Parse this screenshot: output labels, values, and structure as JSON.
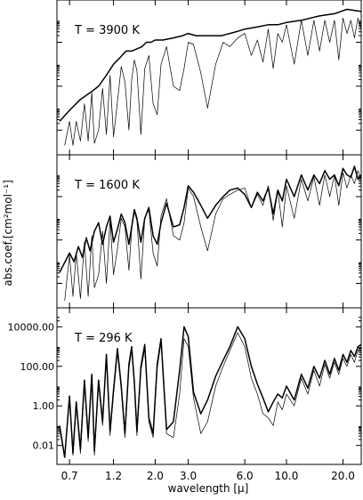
{
  "chart_data": {
    "type": "line",
    "xlabel": "wavelength [μ]",
    "ylabel": "abs.coef.[cm²mol⁻¹]",
    "x_scale": "log",
    "xlim": [
      0.6,
      25
    ],
    "xticks": [
      "0.7",
      "1.2",
      "2.0",
      "3.0",
      "6.0",
      "10.0",
      "20.0"
    ],
    "xtick_values": [
      0.7,
      1.2,
      2.0,
      3.0,
      6.0,
      10.0,
      20.0
    ],
    "panels": [
      {
        "annotation": "T = 3900 K",
        "y_scale": "log",
        "ylim_log10": [
          -2.8,
          3.6
        ],
        "ytick_log10": [
          -2,
          0,
          2
        ],
        "ytick_labels": [],
        "series": [
          {
            "style": "thick",
            "x": [
              0.62,
              0.7,
              0.8,
              0.9,
              1.0,
              1.1,
              1.2,
              1.3,
              1.4,
              1.5,
              1.6,
              1.7,
              1.8,
              1.9,
              2.0,
              2.2,
              2.5,
              2.8,
              3.0,
              3.3,
              3.6,
              4.0,
              4.5,
              5.0,
              5.5,
              6.0,
              7.0,
              8.0,
              9.0,
              10.0,
              12.0,
              15.0,
              18.0,
              21.0,
              25.0
            ],
            "y": [
              -1.6,
              -1.1,
              -0.6,
              -0.3,
              0.0,
              0.5,
              1.0,
              1.3,
              1.6,
              1.6,
              1.7,
              1.8,
              2.0,
              2.0,
              2.1,
              2.1,
              2.2,
              2.3,
              2.4,
              2.3,
              2.3,
              2.3,
              2.3,
              2.4,
              2.5,
              2.6,
              2.7,
              2.8,
              2.8,
              2.9,
              3.0,
              3.2,
              3.3,
              3.5,
              3.4
            ]
          },
          {
            "style": "thin",
            "x": [
              0.66,
              0.7,
              0.73,
              0.76,
              0.8,
              0.84,
              0.88,
              0.92,
              0.95,
              1.0,
              1.05,
              1.1,
              1.15,
              1.2,
              1.26,
              1.32,
              1.38,
              1.45,
              1.5,
              1.55,
              1.6,
              1.68,
              1.76,
              1.85,
              1.95,
              2.05,
              2.15,
              2.3,
              2.5,
              2.7,
              2.85,
              3.0,
              3.2,
              3.5,
              3.8,
              4.2,
              4.6,
              5.0,
              5.5,
              6.0,
              6.5,
              7.0,
              7.5,
              8.0,
              8.5,
              9.0,
              9.5,
              10.0,
              11.0,
              12.0,
              13.0,
              14.0,
              15.0,
              16.0,
              17.0,
              18.0,
              19.0,
              20.0,
              21.0,
              22.0,
              23.0,
              24.0,
              25.0
            ],
            "y": [
              -2.7,
              -1.6,
              -2.7,
              -1.6,
              -2.5,
              -0.8,
              -2.5,
              -0.3,
              -2.6,
              -2.0,
              -0.1,
              -2.2,
              0.5,
              -2.3,
              -0.7,
              0.9,
              0.2,
              -2.0,
              0.3,
              1.2,
              0.7,
              -2.2,
              0.8,
              1.4,
              -0.8,
              -1.3,
              1.0,
              1.8,
              0.0,
              -0.2,
              0.8,
              2.0,
              1.9,
              0.6,
              -1.0,
              1.0,
              2.0,
              1.8,
              2.2,
              2.4,
              1.4,
              2.1,
              1.1,
              2.6,
              0.8,
              2.4,
              2.0,
              2.8,
              1.0,
              3.0,
              1.4,
              3.0,
              1.6,
              3.0,
              2.0,
              3.0,
              1.2,
              3.1,
              2.4,
              3.0,
              2.2,
              3.1,
              2.6
            ]
          }
        ]
      },
      {
        "annotation": "T = 1600 K",
        "y_scale": "log",
        "ylim_log10": [
          -2.8,
          3.6
        ],
        "ytick_log10": [
          -2,
          0,
          2
        ],
        "ytick_labels": [],
        "series": [
          {
            "style": "thick",
            "x": [
              0.62,
              0.7,
              0.74,
              0.78,
              0.82,
              0.86,
              0.9,
              0.95,
              1.0,
              1.05,
              1.1,
              1.15,
              1.2,
              1.26,
              1.32,
              1.38,
              1.45,
              1.5,
              1.55,
              1.6,
              1.68,
              1.76,
              1.85,
              1.95,
              2.05,
              2.15,
              2.3,
              2.5,
              2.7,
              2.85,
              3.0,
              3.2,
              3.5,
              3.8,
              4.2,
              4.6,
              5.0,
              5.5,
              6.0,
              6.5,
              7.0,
              7.5,
              8.0,
              8.5,
              9.0,
              9.5,
              10.0,
              11.0,
              12.0,
              13.0,
              14.0,
              15.0,
              16.0,
              17.0,
              18.0,
              19.0,
              20.0,
              21.0,
              22.0,
              23.0,
              24.0,
              25.0
            ],
            "y": [
              -1.5,
              -0.6,
              -1.0,
              -0.3,
              -0.8,
              0.1,
              -0.5,
              0.4,
              0.8,
              -0.2,
              0.6,
              1.1,
              -0.1,
              0.5,
              1.2,
              0.8,
              -0.2,
              0.6,
              1.4,
              1.0,
              -0.1,
              1.0,
              1.5,
              0.2,
              -0.2,
              0.8,
              1.7,
              0.6,
              0.7,
              1.5,
              2.5,
              2.2,
              1.6,
              1.0,
              1.6,
              2.0,
              2.3,
              2.4,
              2.1,
              1.5,
              2.2,
              1.8,
              2.4,
              1.2,
              2.3,
              1.8,
              2.8,
              2.0,
              3.0,
              2.3,
              3.0,
              2.6,
              3.2,
              2.8,
              3.0,
              2.5,
              3.3,
              3.0,
              2.9,
              3.4,
              2.8,
              3.0
            ]
          },
          {
            "style": "thin",
            "x": [
              0.66,
              0.7,
              0.73,
              0.76,
              0.8,
              0.84,
              0.88,
              0.92,
              0.95,
              1.0,
              1.05,
              1.1,
              1.15,
              1.2,
              1.26,
              1.32,
              1.38,
              1.45,
              1.5,
              1.55,
              1.6,
              1.68,
              1.76,
              1.85,
              1.95,
              2.05,
              2.15,
              2.3,
              2.5,
              2.7,
              2.85,
              3.0,
              3.2,
              3.5,
              3.8,
              4.2,
              4.6,
              5.0,
              5.5,
              6.0,
              6.5,
              7.0,
              7.5,
              8.0,
              8.5,
              9.0,
              9.5,
              10.0,
              11.0,
              12.0,
              13.0,
              14.0,
              15.0,
              16.0,
              17.0,
              18.0,
              19.0,
              20.0,
              21.0,
              22.0,
              23.0,
              24.0,
              25.0
            ],
            "y": [
              -2.8,
              -0.7,
              -2.6,
              -0.6,
              -2.7,
              -0.1,
              -2.6,
              0.2,
              -2.2,
              -1.6,
              0.4,
              -2.0,
              0.9,
              -1.6,
              -0.4,
              1.0,
              0.6,
              -1.4,
              0.5,
              1.3,
              0.9,
              -1.8,
              1.0,
              1.4,
              -0.6,
              -1.2,
              1.1,
              1.9,
              0.2,
              0.0,
              0.8,
              2.4,
              2.0,
              0.6,
              -0.5,
              1.2,
              1.9,
              2.1,
              2.3,
              2.4,
              1.5,
              2.1,
              1.6,
              2.5,
              0.9,
              2.3,
              0.6,
              2.5,
              1.0,
              2.8,
              1.8,
              2.9,
              1.6,
              3.0,
              2.0,
              3.0,
              1.6,
              3.1,
              2.4,
              3.0,
              2.6,
              3.2,
              2.8
            ]
          }
        ]
      },
      {
        "annotation": "T = 296 K",
        "y_scale": "log",
        "ylim_log10": [
          -2.6,
          4.6
        ],
        "ytick_log10": [
          -2,
          0,
          2,
          4
        ],
        "ytick_labels": [
          "0.01",
          "1.00",
          "100.00",
          "10000.00"
        ],
        "series": [
          {
            "style": "thick",
            "x": [
              0.62,
              0.66,
              0.7,
              0.73,
              0.76,
              0.8,
              0.84,
              0.88,
              0.92,
              0.95,
              1.0,
              1.05,
              1.1,
              1.15,
              1.2,
              1.26,
              1.32,
              1.38,
              1.45,
              1.5,
              1.55,
              1.6,
              1.68,
              1.76,
              1.85,
              1.95,
              2.05,
              2.15,
              2.3,
              2.5,
              2.7,
              2.85,
              3.0,
              3.2,
              3.5,
              3.8,
              4.2,
              4.6,
              5.0,
              5.5,
              6.0,
              6.5,
              7.0,
              7.5,
              8.0,
              8.5,
              9.0,
              9.5,
              10.0,
              11.0,
              12.0,
              13.0,
              14.0,
              15.0,
              16.0,
              17.0,
              18.0,
              19.0,
              20.0,
              21.0,
              22.0,
              23.0,
              24.0,
              25.0
            ],
            "y": [
              -1.0,
              -2.6,
              0.5,
              -2.4,
              0.2,
              -2.2,
              1.3,
              -1.6,
              1.6,
              -2.3,
              1.3,
              -0.8,
              2.6,
              -1.3,
              0.8,
              2.9,
              1.0,
              -1.4,
              2.1,
              3.0,
              1.2,
              -1.3,
              2.0,
              3.1,
              -0.6,
              -1.4,
              2.1,
              3.4,
              -1.2,
              -0.8,
              1.8,
              4.0,
              3.5,
              0.7,
              -0.4,
              0.3,
              1.5,
              2.3,
              3.0,
              4.0,
              3.4,
              2.0,
              1.1,
              0.4,
              -0.3,
              0.2,
              0.6,
              0.4,
              1.0,
              0.3,
              1.6,
              0.9,
              2.0,
              1.4,
              2.3,
              1.6,
              2.4,
              1.8,
              2.6,
              2.2,
              2.8,
              2.5,
              3.0,
              3.1
            ]
          },
          {
            "style": "thin",
            "x": [
              0.62,
              0.66,
              0.7,
              0.73,
              0.76,
              0.8,
              0.84,
              0.88,
              0.92,
              0.95,
              1.0,
              1.05,
              1.1,
              1.15,
              1.2,
              1.26,
              1.32,
              1.38,
              1.45,
              1.5,
              1.55,
              1.6,
              1.68,
              1.76,
              1.85,
              1.95,
              2.05,
              2.15,
              2.3,
              2.5,
              2.7,
              2.85,
              3.0,
              3.2,
              3.5,
              3.8,
              4.2,
              4.6,
              5.0,
              5.5,
              6.0,
              6.5,
              7.0,
              7.5,
              8.0,
              8.5,
              9.0,
              9.5,
              10.0,
              11.0,
              12.0,
              13.0,
              14.0,
              15.0,
              16.0,
              17.0,
              18.0,
              19.0,
              20.0,
              21.0,
              22.0,
              23.0,
              24.0,
              25.0
            ],
            "y": [
              -1.2,
              -2.6,
              0.3,
              -2.5,
              0.0,
              -2.4,
              1.1,
              -1.8,
              1.4,
              -2.5,
              1.1,
              -1.0,
              2.4,
              -1.5,
              0.6,
              2.7,
              0.8,
              -1.6,
              1.9,
              2.8,
              1.0,
              -1.5,
              1.8,
              2.9,
              -0.8,
              -1.6,
              1.9,
              3.2,
              -1.4,
              -1.6,
              0.6,
              3.4,
              3.0,
              0.4,
              -1.4,
              -0.8,
              1.0,
              2.0,
              2.8,
              3.7,
              3.0,
              1.4,
              0.6,
              -0.4,
              -0.6,
              -1.0,
              0.2,
              -0.2,
              0.6,
              0.0,
              1.4,
              0.6,
              1.8,
              1.0,
              2.1,
              1.4,
              2.2,
              1.6,
              2.4,
              2.0,
              2.6,
              2.2,
              2.8,
              3.0
            ]
          }
        ]
      }
    ]
  }
}
